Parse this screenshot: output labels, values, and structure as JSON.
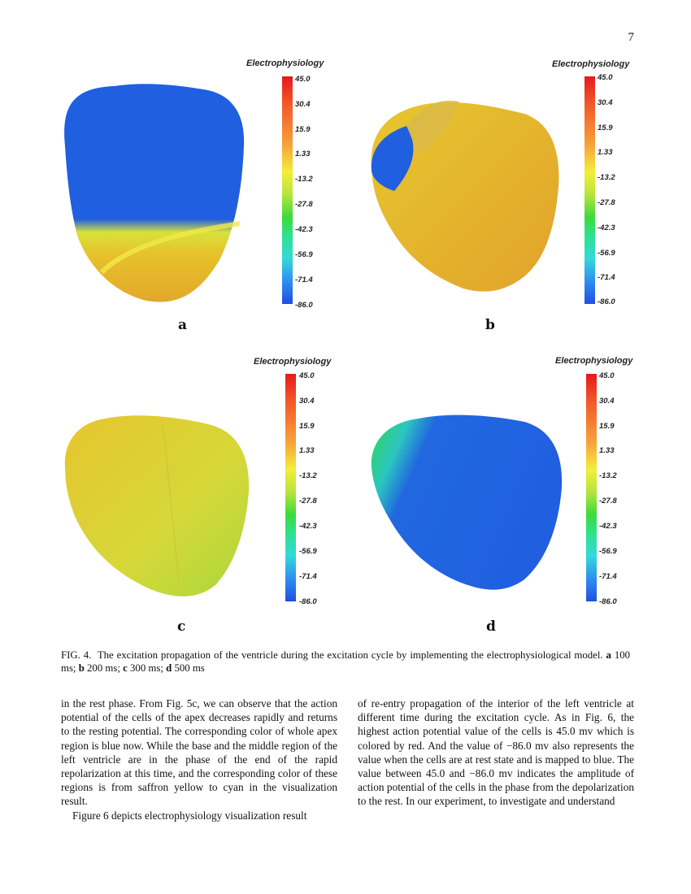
{
  "page_number": "7",
  "colorbar": {
    "title": "Electrophysiology",
    "ticks": [
      "45.0",
      "30.4",
      "15.9",
      "1.33",
      "-13.2",
      "-27.8",
      "-42.3",
      "-56.9",
      "-71.4",
      "-86.0"
    ]
  },
  "panels": [
    {
      "letter": "a",
      "state": "blue with yellow-orange apex band"
    },
    {
      "letter": "b",
      "state": "mostly yellow-orange, blue top-left"
    },
    {
      "letter": "c",
      "state": "yellow-green throughout"
    },
    {
      "letter": "d",
      "state": "mostly blue, green top-left"
    }
  ],
  "caption": {
    "label": "FIG. 4.",
    "text1": "The excitation propagation of the ventricle during the excitation cycle by implementing the electrophysiological model.",
    "a": "a",
    "a_text": "100 ms;",
    "b": "b",
    "b_text": "200 ms;",
    "c": "c",
    "c_text": "300 ms;",
    "d": "d",
    "d_text": "500 ms"
  },
  "body": {
    "left_p1": "in the rest phase. From Fig. 5c, we can observe that the action potential of the cells of the apex decreases rapidly and returns to the resting potential. The corresponding color of whole apex region is blue now. While the base and the middle region of the left ventricle are in the phase of the end of the rapid repolarization at this time, and the corresponding color of these regions is from saffron yellow to cyan in the visualization result.",
    "left_p2": "Figure 6 depicts electrophysiology visualization result",
    "right_p1": "of re-entry propagation of the interior of the left ventricle at different time during the excitation cycle. As in Fig. 6, the highest action potential value of the cells is 45.0 mv which is colored by red. And the value of −86.0 mv also represents the value when the cells are at rest state and is mapped to blue. The value between 45.0 and −86.0 mv indicates the amplitude of action potential of the cells in the phase from the depolarization to the rest. In our experiment, to investigate and understand"
  },
  "colors": {
    "red": "#e41a1c",
    "yellow": "#e8c92a",
    "green": "#3bdb3b",
    "blue": "#1f5fe0"
  }
}
